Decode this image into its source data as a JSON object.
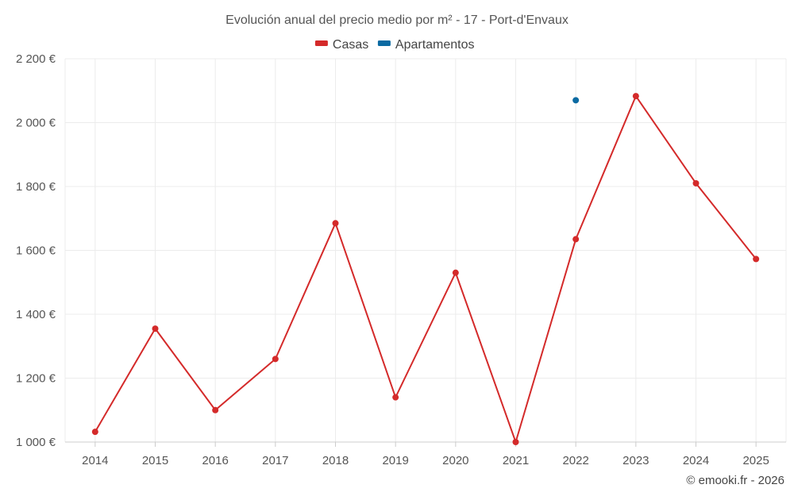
{
  "chart_data": {
    "type": "line",
    "title": "Evolución anual del precio medio por m² - 17 - Port-d'Envaux",
    "categories": [
      "2014",
      "2015",
      "2016",
      "2017",
      "2018",
      "2019",
      "2020",
      "2021",
      "2022",
      "2023",
      "2024",
      "2025"
    ],
    "series": [
      {
        "name": "Casas",
        "color": "#d42a2a",
        "values": [
          1032,
          1355,
          1100,
          1260,
          1685,
          1140,
          1530,
          1000,
          1635,
          2083,
          1810,
          1573
        ]
      },
      {
        "name": "Apartamentos",
        "color": "#0b6aa2",
        "values": [
          null,
          null,
          null,
          null,
          null,
          null,
          null,
          null,
          2070,
          null,
          null,
          null
        ]
      }
    ],
    "ylim": [
      1000,
      2200
    ],
    "yticks": [
      1000,
      1200,
      1400,
      1600,
      1800,
      2000,
      2200
    ],
    "ytick_labels": [
      "1 000 €",
      "1 200 €",
      "1 400 €",
      "1 600 €",
      "1 800 €",
      "2 000 €",
      "2 200 €"
    ],
    "grid": true,
    "legend_position": "top-center"
  },
  "credit": "© emooki.fr - 2026"
}
